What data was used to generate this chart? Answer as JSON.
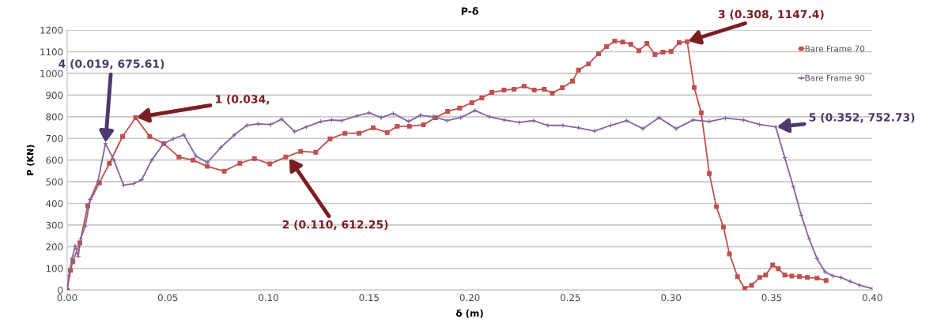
{
  "chart_data": {
    "type": "line",
    "title": "P-δ",
    "xlabel": "δ (m)",
    "ylabel": "P (KN)",
    "xlim": [
      0,
      0.4
    ],
    "xticks": [
      {
        "value": 0,
        "label": "0.00"
      },
      {
        "value": 0.05,
        "label": "0.05"
      },
      {
        "value": 0.1,
        "label": "0.10"
      },
      {
        "value": 0.15,
        "label": "0.15"
      },
      {
        "value": 0.2,
        "label": "0.20"
      },
      {
        "value": 0.25,
        "label": "0.25"
      },
      {
        "value": 0.3,
        "label": "0.30"
      },
      {
        "value": 0.35,
        "label": "0.35"
      },
      {
        "value": 0.4,
        "label": "0.40"
      }
    ],
    "ylim": [
      0,
      1200
    ],
    "yticks": [
      0,
      100,
      200,
      300,
      400,
      500,
      600,
      700,
      800,
      900,
      1000,
      1100,
      1200
    ],
    "grid": "y",
    "legend": "top right",
    "series": [
      {
        "name": "Bare Frame 70",
        "color": "#c0504d",
        "marker": "square",
        "x": [
          0,
          0.0016,
          0.0028,
          0.0063,
          0.0102,
          0.016,
          0.021,
          0.0275,
          0.034,
          0.041,
          0.048,
          0.0555,
          0.0625,
          0.0696,
          0.078,
          0.0858,
          0.093,
          0.1007,
          0.1086,
          0.116,
          0.1235,
          0.1306,
          0.138,
          0.145,
          0.152,
          0.159,
          0.164,
          0.17,
          0.177,
          0.183,
          0.189,
          0.195,
          0.201,
          0.206,
          0.211,
          0.217,
          0.222,
          0.227,
          0.232,
          0.237,
          0.241,
          0.246,
          0.251,
          0.254,
          0.259,
          0.264,
          0.268,
          0.272,
          0.276,
          0.28,
          0.284,
          0.288,
          0.292,
          0.296,
          0.3,
          0.304,
          0.308,
          0.3115,
          0.315,
          0.319,
          0.3225,
          0.326,
          0.329,
          0.333,
          0.3366,
          0.34,
          0.344,
          0.347,
          0.3505,
          0.3533,
          0.3565,
          0.36,
          0.3638,
          0.3677,
          0.3725,
          0.377
        ],
        "values": [
          0,
          91,
          131,
          218,
          389,
          495,
          585,
          709,
          796,
          709,
          676,
          614,
          600,
          571,
          549,
          585,
          607,
          582,
          614,
          640,
          636,
          698,
          724,
          724,
          749,
          727,
          756,
          756,
          763,
          796,
          825,
          840,
          865,
          887,
          912,
          923,
          927,
          941,
          923,
          927,
          909,
          934,
          964,
          1015,
          1044,
          1091,
          1124,
          1149,
          1145,
          1135,
          1105,
          1138,
          1087,
          1098,
          1102,
          1142,
          1147,
          935,
          818,
          538,
          385,
          291,
          167,
          62,
          7,
          22,
          58,
          69,
          116,
          98,
          69,
          65,
          62,
          58,
          55,
          44
        ]
      },
      {
        "name": "Bare Frame 90",
        "color": "#8064a2",
        "marker": "cross",
        "x": [
          0,
          0.0008,
          0.0024,
          0.004,
          0.0055,
          0.0067,
          0.009,
          0.0114,
          0.0153,
          0.019,
          0.0232,
          0.028,
          0.033,
          0.037,
          0.042,
          0.048,
          0.0527,
          0.058,
          0.064,
          0.0697,
          0.0763,
          0.083,
          0.0893,
          0.0948,
          0.101,
          0.1066,
          0.113,
          0.1188,
          0.126,
          0.1314,
          0.1365,
          0.144,
          0.15,
          0.156,
          0.162,
          0.1696,
          0.1755,
          0.1818,
          0.1888,
          0.1955,
          0.2026,
          0.2097,
          0.2171,
          0.2246,
          0.2317,
          0.2388,
          0.2463,
          0.254,
          0.262,
          0.27,
          0.278,
          0.286,
          0.294,
          0.3025,
          0.311,
          0.319,
          0.327,
          0.336,
          0.344,
          0.352,
          0.3565,
          0.3608,
          0.3647,
          0.3686,
          0.3725,
          0.3765,
          0.3805,
          0.3844,
          0.389,
          0.3938,
          0.4
        ],
        "values": [
          0,
          65,
          145,
          204,
          156,
          236,
          295,
          418,
          502,
          676,
          600,
          484,
          491,
          509,
          600,
          676,
          698,
          716,
          618,
          589,
          658,
          716,
          760,
          767,
          764,
          789,
          731,
          753,
          778,
          785,
          782,
          804,
          818,
          796,
          815,
          778,
          807,
          800,
          782,
          796,
          829,
          800,
          785,
          774,
          782,
          760,
          760,
          749,
          734,
          760,
          782,
          745,
          796,
          745,
          785,
          778,
          793,
          785,
          764,
          753,
          611,
          476,
          345,
          236,
          145,
          84,
          65,
          58,
          40,
          22,
          7
        ]
      }
    ],
    "annotations": [
      {
        "text": "4 (0.019, 675.61)",
        "x": 0.019,
        "y": 675.61
      },
      {
        "text": "1 (0.034,",
        "x": 0.034,
        "y": 796
      },
      {
        "text": "2 (0.110, 612.25)",
        "x": 0.11,
        "y": 612.25
      },
      {
        "text": "3 (0.308, 1147.4)",
        "x": 0.308,
        "y": 1147.4
      },
      {
        "text": "5 (0.352, 752.73)",
        "x": 0.352,
        "y": 752.73
      }
    ]
  }
}
